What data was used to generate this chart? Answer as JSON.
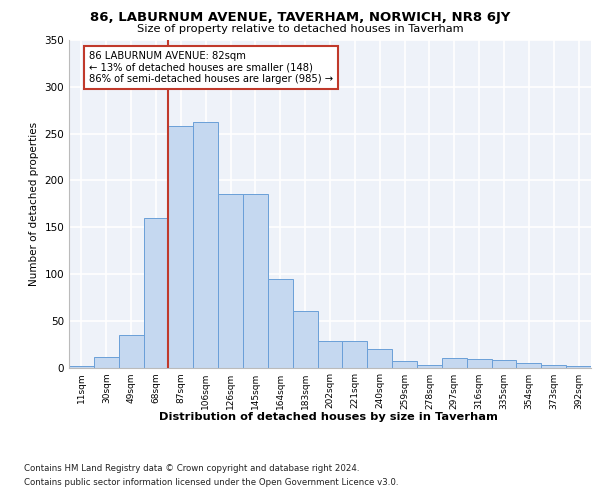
{
  "title": "86, LABURNUM AVENUE, TAVERHAM, NORWICH, NR8 6JY",
  "subtitle": "Size of property relative to detached houses in Taverham",
  "xlabel": "Distribution of detached houses by size in Taverham",
  "ylabel": "Number of detached properties",
  "categories": [
    "11sqm",
    "30sqm",
    "49sqm",
    "68sqm",
    "87sqm",
    "106sqm",
    "126sqm",
    "145sqm",
    "164sqm",
    "183sqm",
    "202sqm",
    "221sqm",
    "240sqm",
    "259sqm",
    "278sqm",
    "297sqm",
    "316sqm",
    "335sqm",
    "354sqm",
    "373sqm",
    "392sqm"
  ],
  "values": [
    2,
    11,
    35,
    160,
    258,
    262,
    185,
    185,
    95,
    60,
    28,
    28,
    20,
    7,
    3,
    10,
    9,
    8,
    5,
    3,
    2
  ],
  "bar_color": "#c5d8f0",
  "bar_edge_color": "#6a9fd8",
  "property_line_color": "#c0392b",
  "annotation_text": "86 LABURNUM AVENUE: 82sqm\n← 13% of detached houses are smaller (148)\n86% of semi-detached houses are larger (985) →",
  "annotation_box_color": "#ffffff",
  "annotation_box_edge": "#c0392b",
  "ylim": [
    0,
    350
  ],
  "yticks": [
    0,
    50,
    100,
    150,
    200,
    250,
    300,
    350
  ],
  "background_color": "#eef2f9",
  "grid_color": "#ffffff",
  "fig_background": "#ffffff",
  "footer_line1": "Contains HM Land Registry data © Crown copyright and database right 2024.",
  "footer_line2": "Contains public sector information licensed under the Open Government Licence v3.0."
}
